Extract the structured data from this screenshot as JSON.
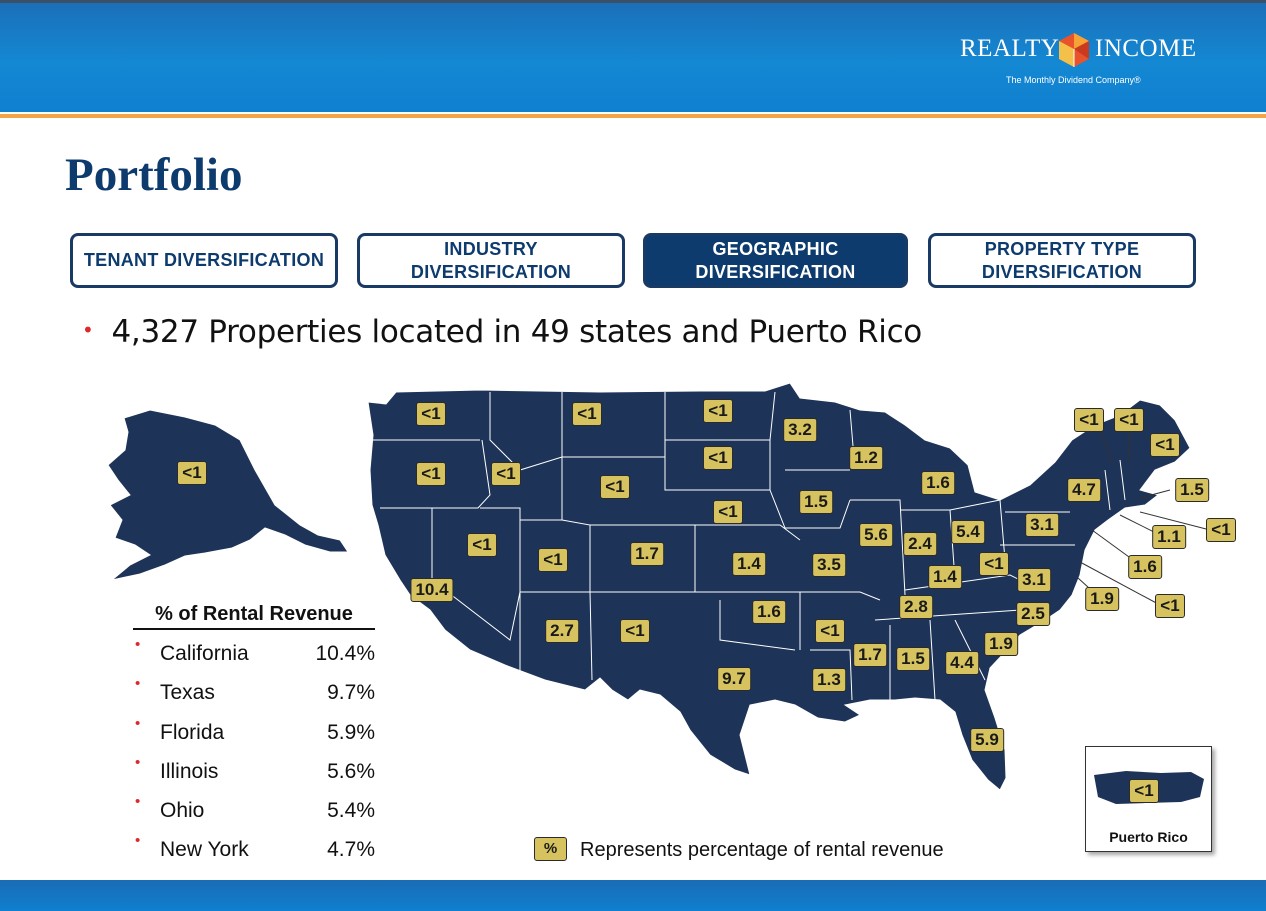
{
  "logo": {
    "left_word": "REALTY",
    "right_word": "INCOME",
    "tagline": "The Monthly Dividend Company®"
  },
  "page": {
    "title": "Portfolio"
  },
  "tabs": [
    {
      "label": "TENANT DIVERSIFICATION",
      "active": false
    },
    {
      "label": "INDUSTRY\nDIVERSIFICATION",
      "active": false
    },
    {
      "label": "GEOGRAPHIC\nDIVERSIFICATION",
      "active": true
    },
    {
      "label": "PROPERTY TYPE\nDIVERSIFICATION",
      "active": false
    }
  ],
  "headline": {
    "bullet": "•",
    "text": "4,327 Properties located in 49 states and Puerto Rico"
  },
  "rental_revenue": {
    "title": "% of Rental Revenue",
    "rows": [
      {
        "state": "California",
        "pct": "10.4%"
      },
      {
        "state": "Texas",
        "pct": "9.7%"
      },
      {
        "state": "Florida",
        "pct": "5.9%"
      },
      {
        "state": "Illinois",
        "pct": "5.6%"
      },
      {
        "state": "Ohio",
        "pct": "5.4%"
      },
      {
        "state": "New York",
        "pct": "4.7%"
      }
    ]
  },
  "map_labels": [
    {
      "region": "Alaska",
      "value": "<1"
    },
    {
      "region": "Washington",
      "value": "<1"
    },
    {
      "region": "Oregon",
      "value": "<1"
    },
    {
      "region": "California",
      "value": "10.4"
    },
    {
      "region": "Nevada",
      "value": "<1"
    },
    {
      "region": "Idaho",
      "value": "<1"
    },
    {
      "region": "Montana",
      "value": "<1"
    },
    {
      "region": "Wyoming",
      "value": "<1"
    },
    {
      "region": "Utah",
      "value": "<1"
    },
    {
      "region": "Arizona",
      "value": "2.7"
    },
    {
      "region": "Colorado",
      "value": "1.7"
    },
    {
      "region": "New Mexico",
      "value": "<1"
    },
    {
      "region": "North Dakota",
      "value": "<1"
    },
    {
      "region": "South Dakota",
      "value": "<1"
    },
    {
      "region": "Nebraska",
      "value": "<1"
    },
    {
      "region": "Kansas",
      "value": "1.4"
    },
    {
      "region": "Oklahoma",
      "value": "1.6"
    },
    {
      "region": "Texas",
      "value": "9.7"
    },
    {
      "region": "Minnesota",
      "value": "3.2"
    },
    {
      "region": "Iowa",
      "value": "1.5"
    },
    {
      "region": "Missouri",
      "value": "3.5"
    },
    {
      "region": "Arkansas",
      "value": "<1"
    },
    {
      "region": "Louisiana",
      "value": "1.3"
    },
    {
      "region": "Wisconsin",
      "value": "1.2"
    },
    {
      "region": "Illinois",
      "value": "5.6"
    },
    {
      "region": "Michigan",
      "value": "1.6"
    },
    {
      "region": "Indiana",
      "value": "2.4"
    },
    {
      "region": "Ohio",
      "value": "5.4"
    },
    {
      "region": "Kentucky",
      "value": "1.4"
    },
    {
      "region": "Tennessee",
      "value": "2.8"
    },
    {
      "region": "Mississippi",
      "value": "1.7"
    },
    {
      "region": "Alabama",
      "value": "1.5"
    },
    {
      "region": "Georgia",
      "value": "4.4"
    },
    {
      "region": "Florida",
      "value": "5.9"
    },
    {
      "region": "South Carolina",
      "value": "1.9"
    },
    {
      "region": "North Carolina",
      "value": "2.5"
    },
    {
      "region": "Virginia",
      "value": "3.1"
    },
    {
      "region": "West Virginia",
      "value": "<1"
    },
    {
      "region": "Pennsylvania",
      "value": "3.1"
    },
    {
      "region": "New York",
      "value": "4.7"
    },
    {
      "region": "Vermont",
      "value": "<1"
    },
    {
      "region": "New Hampshire",
      "value": "<1"
    },
    {
      "region": "Maine",
      "value": "<1"
    },
    {
      "region": "Massachusetts",
      "value": "1.5"
    },
    {
      "region": "Rhode Island",
      "value": "<1"
    },
    {
      "region": "Connecticut",
      "value": "1.1"
    },
    {
      "region": "New Jersey",
      "value": "1.6"
    },
    {
      "region": "Delaware",
      "value": "<1"
    },
    {
      "region": "Maryland",
      "value": "1.9"
    },
    {
      "region": "Puerto Rico",
      "value": "<1"
    }
  ],
  "puerto_rico": {
    "label": "Puerto Rico"
  },
  "legend": {
    "symbol": "%",
    "text": "Represents percentage of rental revenue"
  },
  "colors": {
    "brand_navy": "#0d3b6e",
    "map_fill": "#1d3358",
    "badge_fill": "#d6c35f",
    "accent_orange": "#f3a447",
    "bullet_red": "#e0272b"
  }
}
